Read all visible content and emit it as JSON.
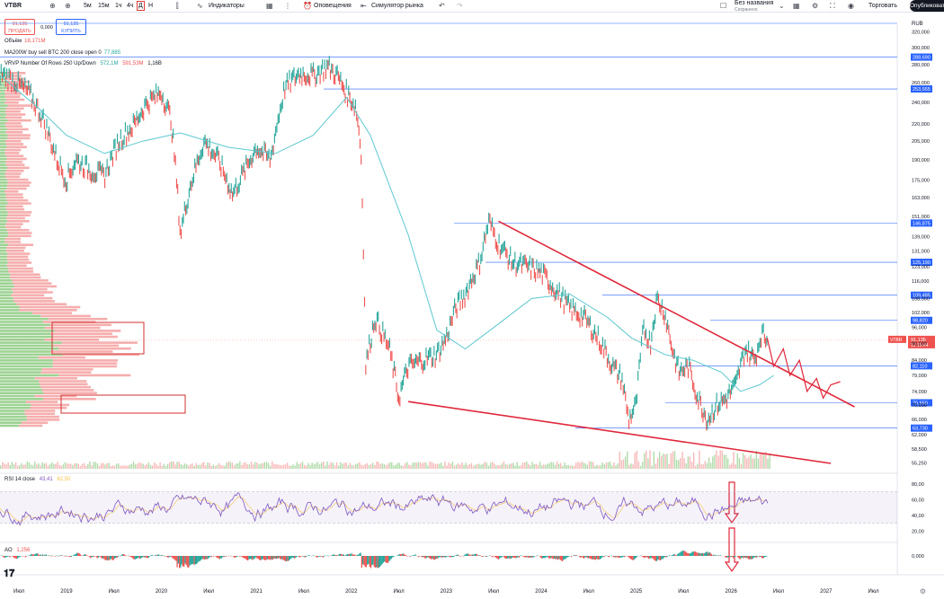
{
  "toolbar": {
    "symbol": "VTBR",
    "intervals": [
      "5м",
      "15м",
      "1ч",
      "4ч",
      "Д",
      "Н"
    ],
    "indicators_label": "Индикаторы",
    "alerts_label": "Оповещения",
    "replay_label": "Симулятор рынка",
    "layout_name": "Без названия",
    "layout_status": "Сохранено",
    "trade_label": "Торговать",
    "publish_label": "Опубликовать"
  },
  "trade_panel": {
    "sell_price": "91,135",
    "sell_label": "ПРОДАТЬ",
    "spread": "0,000",
    "buy_price": "91,135",
    "buy_label": "КУПИТЬ"
  },
  "legend": {
    "volume_label": "Объём",
    "volume_value": "18,171M",
    "ma_label": "MA200W buy sell BTC 200 close open 0",
    "ma_value": "77,885",
    "vrvp_label": "VRVP Number Of Rows 250 Up/Down",
    "vrvp_v1": "572,1M",
    "vrvp_v2": "591,53M",
    "vrvp_v3": "1,16B"
  },
  "rsi": {
    "label": "RSI 14 close",
    "v1": "43,41",
    "v2": "62,50"
  },
  "ao": {
    "label": "AO",
    "value": "1,256"
  },
  "colors": {
    "up": "#26a69a",
    "down": "#ef5350",
    "ma": "#5bc8d0",
    "trend": "#e0283a",
    "level": "#2962ff",
    "rsi": "#7e57c2",
    "vol_up": "#7cc36f",
    "vol_down": "#f28b8b"
  },
  "chart_data": {
    "type": "line",
    "currency": "RUB",
    "x_labels": [
      "Июл",
      "2019",
      "Июл",
      "2020",
      "Июл",
      "2021",
      "Июл",
      "2022",
      "Июл",
      "2023",
      "Июл",
      "2024",
      "Июл",
      "2025",
      "Июл",
      "2026",
      "Июл",
      "2027",
      "Июл"
    ],
    "price_ticks": [
      "320,000",
      "300,000",
      "280,000",
      "260,000",
      "240,000",
      "220,000",
      "205,000",
      "190,000",
      "175,000",
      "163,000",
      "151,000",
      "139,000",
      "131,000",
      "123,000",
      "116,000",
      "108,000",
      "102,000",
      "96,000",
      "90,000",
      "84,000",
      "79,000",
      "74,000",
      "70,000",
      "66,000",
      "62,000",
      "58,500",
      "55,250"
    ],
    "levels": [
      "288,690",
      "253,555",
      "146,875",
      "125,190",
      "109,485",
      "98,820",
      "82,110",
      "70,650",
      "63,730"
    ],
    "last_price": "91,135",
    "last_time": "12:16:44",
    "series": [
      {
        "values": [
          [
            2018.3,
            270
          ],
          [
            2018.45,
            262
          ],
          [
            2018.6,
            250
          ],
          [
            2018.75,
            225
          ],
          [
            2018.9,
            190
          ],
          [
            2019.0,
            175
          ],
          [
            2019.1,
            190
          ],
          [
            2019.25,
            182
          ],
          [
            2019.4,
            178
          ],
          [
            2019.55,
            205
          ],
          [
            2019.7,
            218
          ],
          [
            2019.85,
            240
          ],
          [
            2020.0,
            250
          ],
          [
            2020.1,
            225
          ],
          [
            2020.2,
            140
          ],
          [
            2020.3,
            170
          ],
          [
            2020.45,
            205
          ],
          [
            2020.6,
            190
          ],
          [
            2020.75,
            165
          ],
          [
            2020.9,
            185
          ],
          [
            2021.0,
            200
          ],
          [
            2021.15,
            190
          ],
          [
            2021.3,
            255
          ],
          [
            2021.45,
            270
          ],
          [
            2021.6,
            268
          ],
          [
            2021.75,
            278
          ],
          [
            2021.85,
            268
          ],
          [
            2021.95,
            250
          ],
          [
            2022.05,
            235
          ],
          [
            2022.1,
            200
          ],
          [
            2022.15,
            82
          ],
          [
            2022.25,
            100
          ],
          [
            2022.4,
            88
          ],
          [
            2022.5,
            72
          ],
          [
            2022.6,
            82
          ],
          [
            2022.75,
            84
          ],
          [
            2022.9,
            86
          ],
          [
            2023.0,
            92
          ],
          [
            2023.1,
            104
          ],
          [
            2023.2,
            110
          ],
          [
            2023.35,
            125
          ],
          [
            2023.45,
            148
          ],
          [
            2023.55,
            135
          ],
          [
            2023.7,
            125
          ],
          [
            2023.85,
            123
          ],
          [
            2024.0,
            120
          ],
          [
            2024.15,
            112
          ],
          [
            2024.3,
            104
          ],
          [
            2024.45,
            100
          ],
          [
            2024.6,
            92
          ],
          [
            2024.75,
            82
          ],
          [
            2024.85,
            78
          ],
          [
            2024.92,
            66
          ],
          [
            2025.0,
            70
          ],
          [
            2025.08,
            96
          ],
          [
            2025.15,
            90
          ],
          [
            2025.22,
            108
          ],
          [
            2025.3,
            102
          ],
          [
            2025.38,
            88
          ],
          [
            2025.45,
            80
          ],
          [
            2025.55,
            82
          ],
          [
            2025.65,
            72
          ],
          [
            2025.75,
            66
          ],
          [
            2025.85,
            70
          ],
          [
            2025.95,
            72
          ],
          [
            2026.05,
            76
          ],
          [
            2026.15,
            88
          ],
          [
            2026.25,
            84
          ],
          [
            2026.32,
            94
          ],
          [
            2026.38,
            91.1
          ]
        ]
      },
      {
        "name": "MA200W",
        "values": [
          [
            2018.3,
            268
          ],
          [
            2018.7,
            235
          ],
          [
            2019.0,
            210
          ],
          [
            2019.4,
            195
          ],
          [
            2019.8,
            205
          ],
          [
            2020.2,
            212
          ],
          [
            2020.7,
            200
          ],
          [
            2021.2,
            195
          ],
          [
            2021.6,
            210
          ],
          [
            2021.95,
            245
          ],
          [
            2022.2,
            210
          ],
          [
            2022.6,
            140
          ],
          [
            2022.9,
            95
          ],
          [
            2023.2,
            88
          ],
          [
            2023.5,
            96
          ],
          [
            2023.9,
            108
          ],
          [
            2024.3,
            110
          ],
          [
            2024.7,
            100
          ],
          [
            2024.95,
            92
          ],
          [
            2025.3,
            86
          ],
          [
            2025.6,
            84
          ],
          [
            2025.9,
            80
          ],
          [
            2026.1,
            74
          ],
          [
            2026.3,
            76
          ],
          [
            2026.45,
            79
          ]
        ]
      }
    ]
  }
}
